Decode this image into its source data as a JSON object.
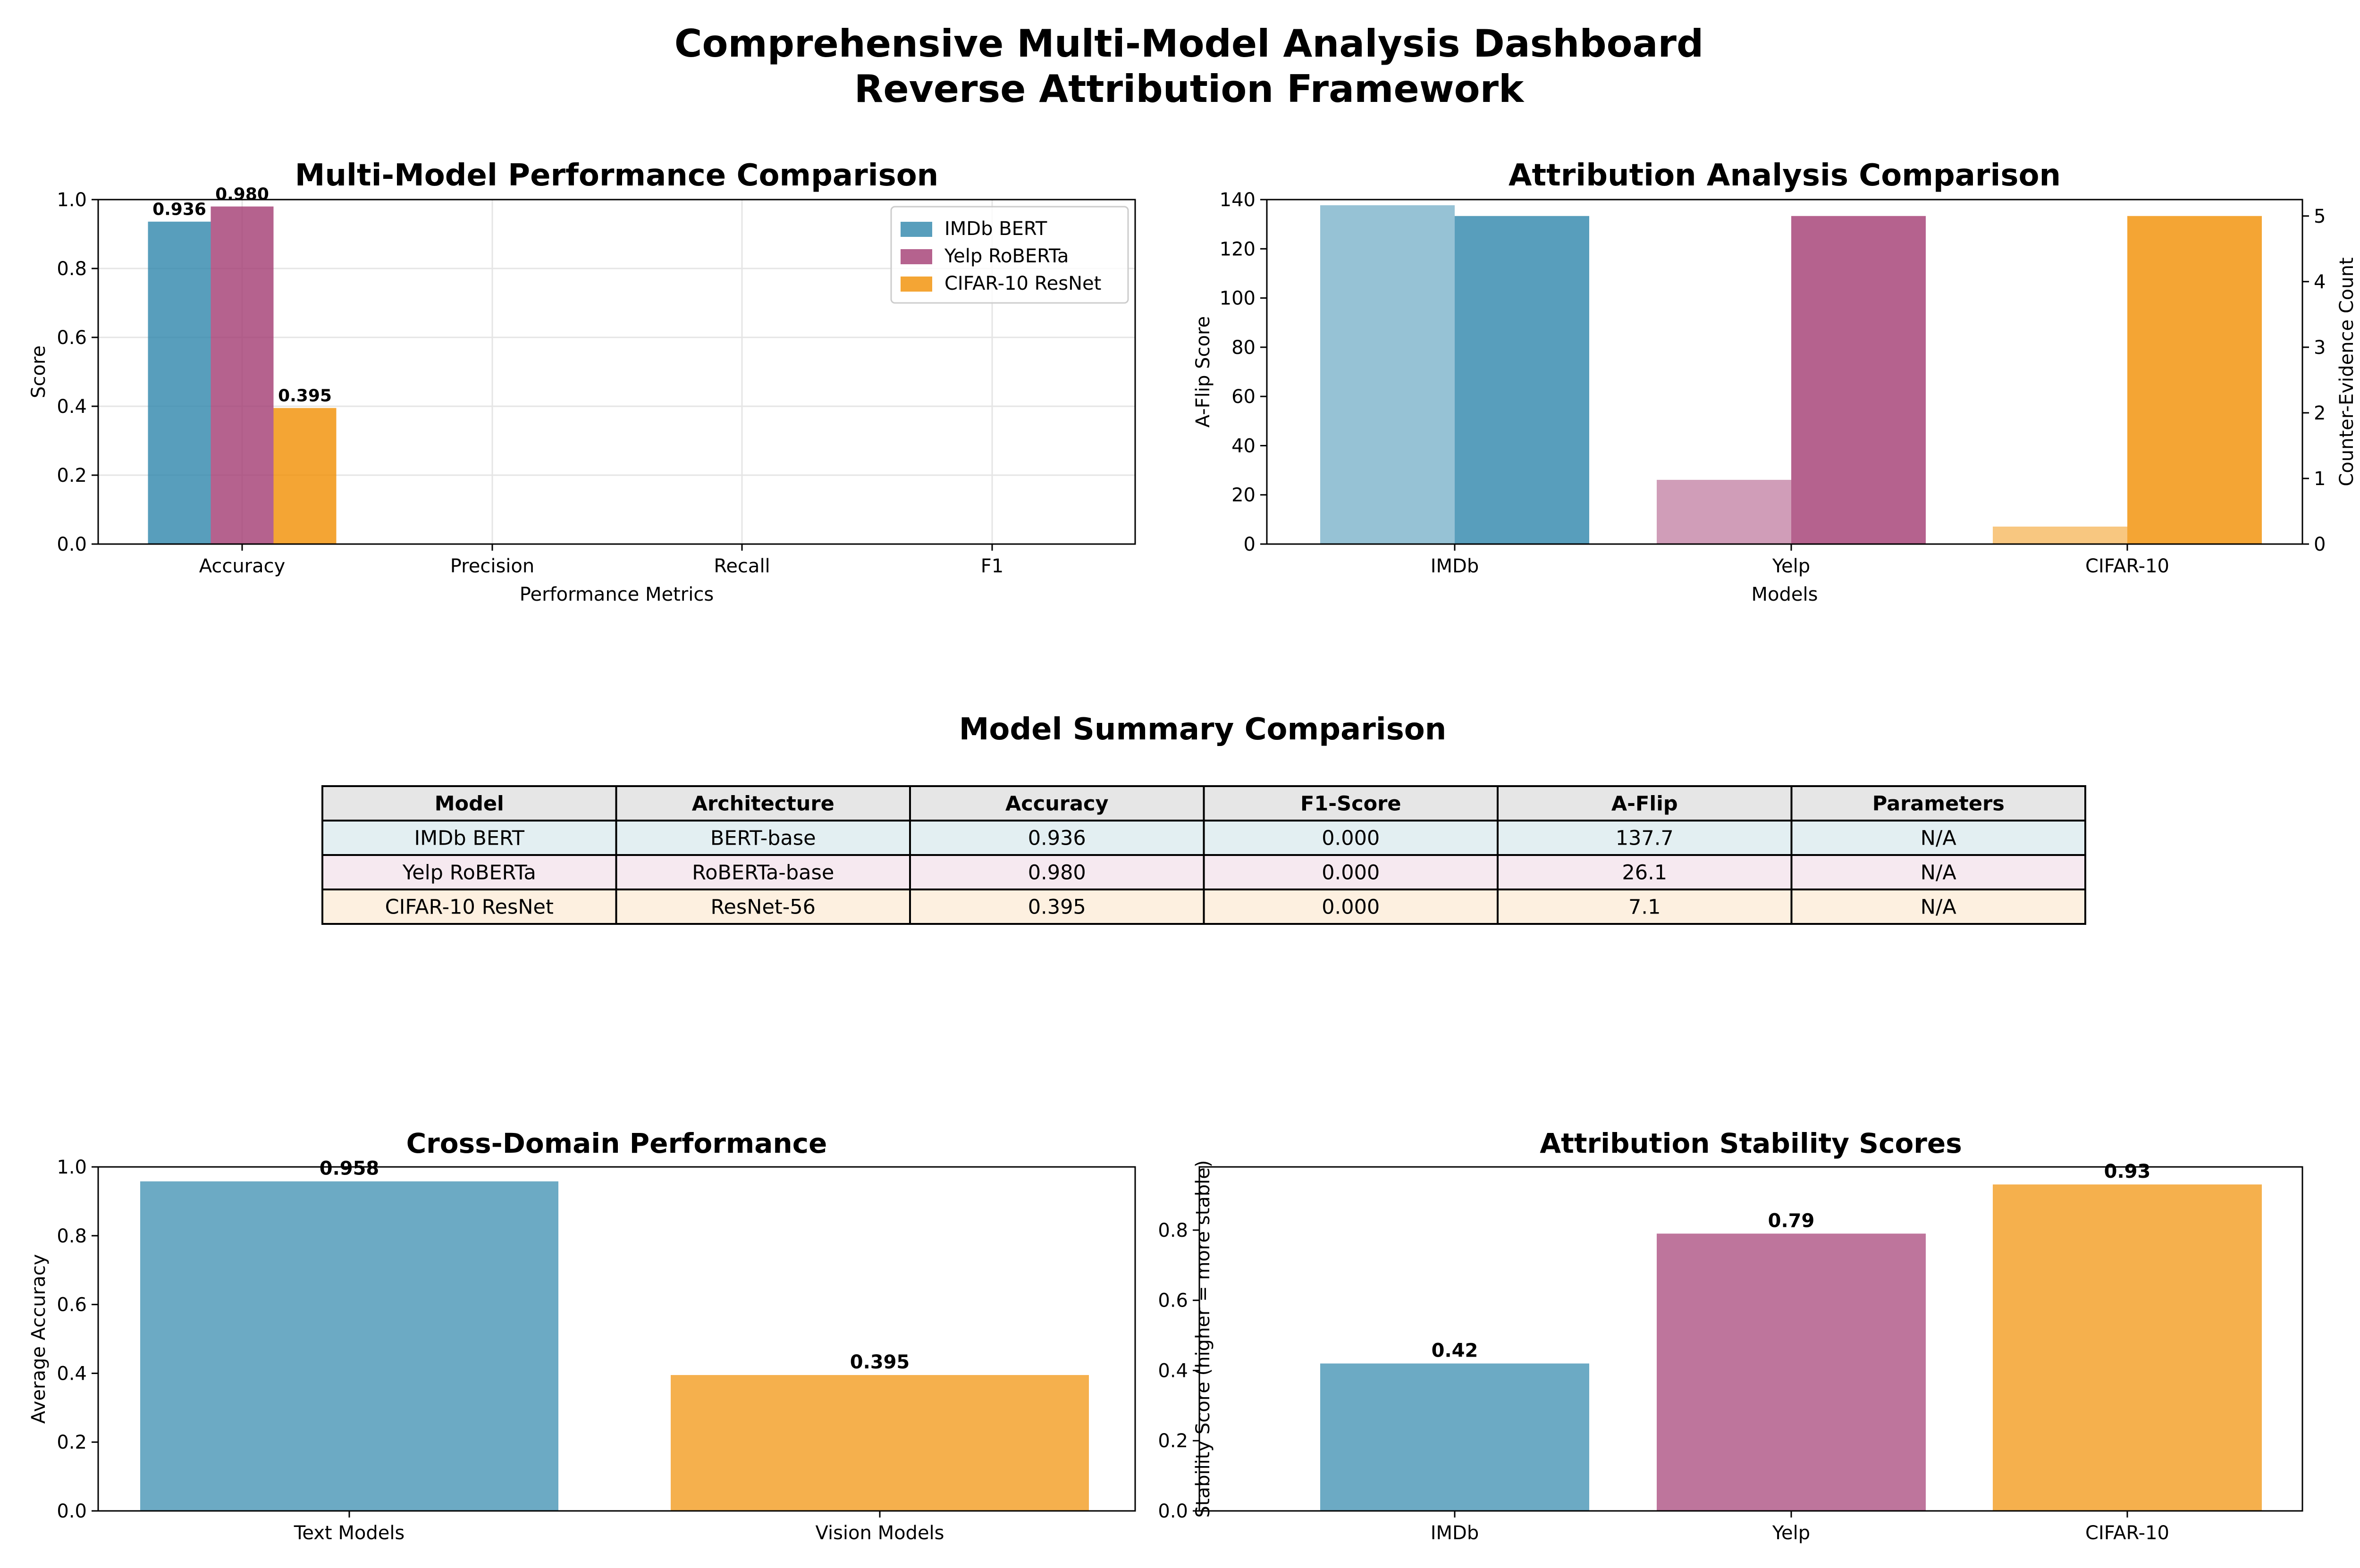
{
  "figure": {
    "title_line1": "Comprehensive Multi-Model Analysis Dashboard",
    "title_line2": "Reverse Attribution Framework"
  },
  "colors": {
    "imdb": "#2E86AB",
    "yelp": "#A23B72",
    "cifar": "#F18F01",
    "header_bg": "#e6e6e6",
    "row_imdb": "#e3eff2",
    "row_yelp": "#f6e9f0",
    "row_cifar": "#fdf0e0",
    "ylabel_left": "#0000ff",
    "ylabel_right": "#ff0000"
  },
  "chart_data": [
    {
      "id": "performance",
      "type": "bar",
      "title": "Multi-Model Performance Comparison",
      "xlabel": "Performance Metrics",
      "ylabel": "Score",
      "categories": [
        "Accuracy",
        "Precision",
        "Recall",
        "F1"
      ],
      "ylim": [
        0,
        1.0
      ],
      "yticks": [
        "0.0",
        "0.2",
        "0.4",
        "0.6",
        "0.8",
        "1.0"
      ],
      "grid": true,
      "legend": "top-right",
      "series": [
        {
          "name": "IMDb BERT",
          "values": [
            0.936,
            0,
            0,
            0
          ],
          "label": "0.936"
        },
        {
          "name": "Yelp RoBERTa",
          "values": [
            0.98,
            0,
            0,
            0
          ],
          "label": "0.980"
        },
        {
          "name": "CIFAR-10 ResNet",
          "values": [
            0.395,
            0,
            0,
            0
          ],
          "label": "0.395"
        }
      ]
    },
    {
      "id": "attribution",
      "type": "bar",
      "title": "Attribution Analysis Comparison",
      "xlabel": "Models",
      "ylabel": "A-Flip Score",
      "ylabel_right": "Counter-Evidence Count",
      "categories": [
        "IMDb",
        "Yelp",
        "CIFAR-10"
      ],
      "ylim": [
        0,
        140
      ],
      "yticks": [
        "0",
        "20",
        "40",
        "60",
        "80",
        "100",
        "120",
        "140"
      ],
      "ylim_right": [
        0,
        5.25
      ],
      "yticks_right": [
        "0",
        "1",
        "2",
        "3",
        "4",
        "5"
      ],
      "aflip": [
        137.7,
        26.1,
        7.1
      ],
      "counter_evidence": [
        5,
        5,
        5
      ]
    },
    {
      "id": "cross-domain",
      "type": "bar",
      "title": "Cross-Domain Performance",
      "ylabel": "Average Accuracy",
      "categories": [
        "Text Models",
        "Vision Models"
      ],
      "values": [
        0.958,
        0.395
      ],
      "labels": [
        "0.958",
        "0.395"
      ],
      "ylim": [
        0,
        1.0
      ],
      "yticks": [
        "0.0",
        "0.2",
        "0.4",
        "0.6",
        "0.8",
        "1.0"
      ]
    },
    {
      "id": "stability",
      "type": "bar",
      "title": "Attribution Stability Scores",
      "ylabel": "Stability Score (higher = more stable)",
      "categories": [
        "IMDb",
        "Yelp",
        "CIFAR-10"
      ],
      "values": [
        0.42,
        0.79,
        0.93
      ],
      "labels": [
        "0.42",
        "0.79",
        "0.93"
      ],
      "ylim": [
        0,
        0.98
      ],
      "yticks": [
        "0.0",
        "0.2",
        "0.4",
        "0.6",
        "0.8"
      ]
    }
  ],
  "table": {
    "title": "Model Summary Comparison",
    "headers": [
      "Model",
      "Architecture",
      "Accuracy",
      "F1-Score",
      "A-Flip",
      "Parameters"
    ],
    "rows": [
      [
        "IMDb BERT",
        "BERT-base",
        "0.936",
        "0.000",
        "137.7",
        "N/A"
      ],
      [
        "Yelp RoBERTa",
        "RoBERTa-base",
        "0.980",
        "0.000",
        "26.1",
        "N/A"
      ],
      [
        "CIFAR-10 ResNet",
        "ResNet-56",
        "0.395",
        "0.000",
        "7.1",
        "N/A"
      ]
    ]
  }
}
